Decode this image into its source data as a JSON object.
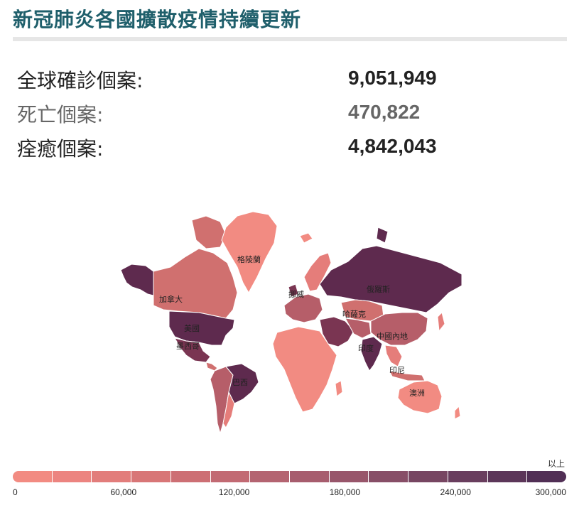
{
  "title": "新冠肺炎各國擴散疫情持續更新",
  "stats": [
    {
      "label": "全球確診個案:",
      "value": "9,051,949",
      "muted": false
    },
    {
      "label": "死亡個案:",
      "value": "470,822",
      "muted": true
    },
    {
      "label": "痊癒個案:",
      "value": "4,842,043",
      "muted": false
    }
  ],
  "map": {
    "labels": {
      "greenland": "格陵蘭",
      "russia": "俄羅斯",
      "norway": "挪威",
      "kazakhstan": "哈薩克",
      "canada": "加拿大",
      "usa": "美國",
      "mexico": "墨西哥",
      "china": "中國內地",
      "india": "印度",
      "indonesia": "印尼",
      "brazil": "巴西",
      "australia": "澳洲"
    },
    "colors": {
      "light": "#f28b82",
      "light2": "#e57d7a",
      "mid": "#d0706f",
      "mid2": "#b65e69",
      "dark": "#7a3552",
      "darkest": "#5e2a4e",
      "border": "#ffffff"
    }
  },
  "legend": {
    "suffix": "以上",
    "ticks": [
      "0",
      "60,000",
      "120,000",
      "180,000",
      "240,000",
      "300,000"
    ],
    "colors": [
      "#f28b82",
      "#ec8480",
      "#e27d7b",
      "#d87677",
      "#cd6f74",
      "#c26a73",
      "#b46471",
      "#a75d6e",
      "#98566b",
      "#874e67",
      "#774662",
      "#693e5e",
      "#5c3659",
      "#512f55"
    ]
  }
}
